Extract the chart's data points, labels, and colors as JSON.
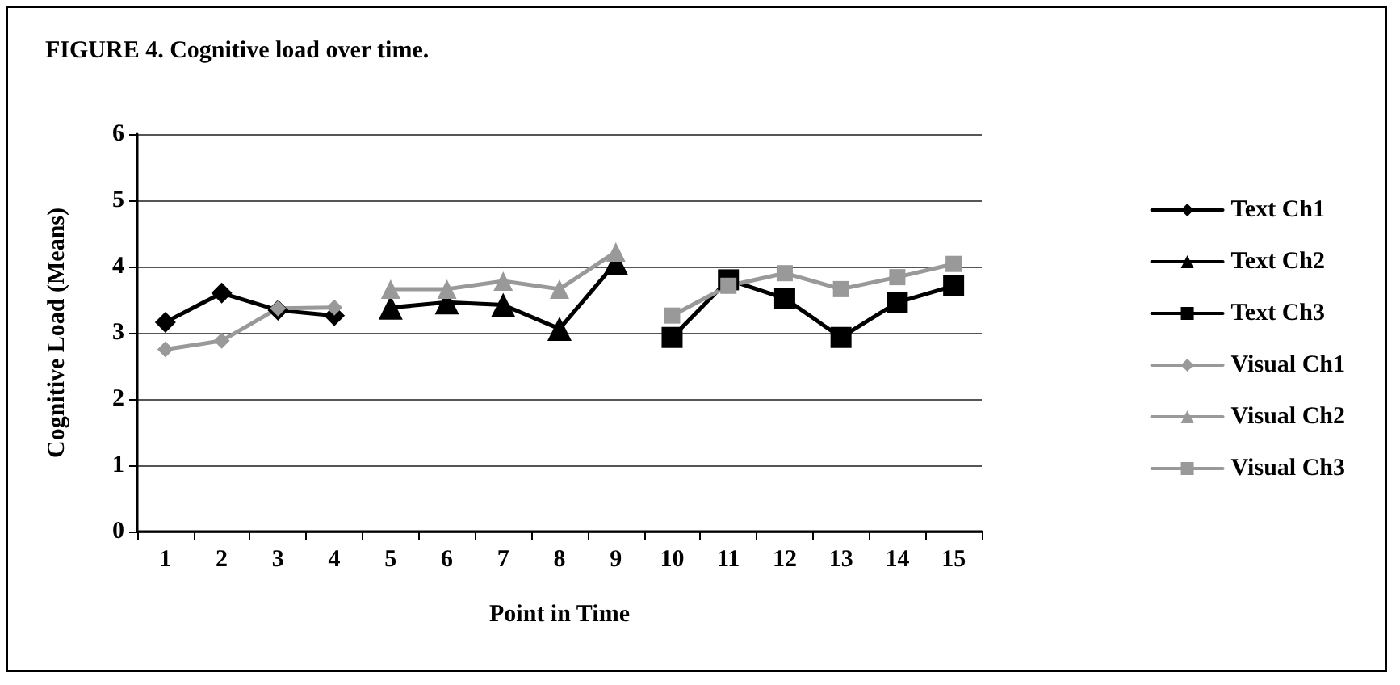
{
  "chart_data": {
    "type": "line",
    "title": "FIGURE 4. Cognitive load over time.",
    "xlabel": "Point in Time",
    "ylabel": "Cognitive Load (Means)",
    "categories": [
      "1",
      "2",
      "3",
      "4",
      "5",
      "6",
      "7",
      "8",
      "9",
      "10",
      "11",
      "12",
      "13",
      "14",
      "15"
    ],
    "series": [
      {
        "name": "Text Ch1",
        "color": "#000000",
        "marker": "diamond",
        "values": [
          3.16,
          3.6,
          3.34,
          3.26,
          null,
          null,
          null,
          null,
          null,
          null,
          null,
          null,
          null,
          null,
          null
        ]
      },
      {
        "name": "Text Ch2",
        "color": "#000000",
        "marker": "triangle",
        "values": [
          null,
          null,
          null,
          null,
          3.38,
          3.46,
          3.42,
          3.06,
          4.06,
          null,
          null,
          null,
          null,
          null,
          null
        ]
      },
      {
        "name": "Text Ch3",
        "color": "#000000",
        "marker": "square",
        "values": [
          null,
          null,
          null,
          null,
          null,
          null,
          null,
          null,
          null,
          2.93,
          3.8,
          3.52,
          2.93,
          3.46,
          3.71
        ]
      },
      {
        "name": "Visual Ch1",
        "color": "#999999",
        "marker": "diamond",
        "values": [
          2.75,
          2.88,
          3.37,
          3.38,
          null,
          null,
          null,
          null,
          null,
          null,
          null,
          null,
          null,
          null,
          null
        ]
      },
      {
        "name": "Visual Ch2",
        "color": "#999999",
        "marker": "triangle",
        "values": [
          null,
          null,
          null,
          null,
          3.66,
          3.66,
          3.78,
          3.66,
          4.22,
          null,
          null,
          null,
          null,
          null,
          null
        ]
      },
      {
        "name": "Visual Ch3",
        "color": "#999999",
        "marker": "square",
        "values": [
          null,
          null,
          null,
          null,
          null,
          null,
          null,
          null,
          null,
          3.26,
          3.71,
          3.9,
          3.66,
          3.84,
          4.04
        ]
      }
    ],
    "ylim": [
      0,
      6
    ],
    "yticks": [
      0,
      1,
      2,
      3,
      4,
      5,
      6
    ],
    "grid": "y",
    "legend": "right",
    "line_style": "solid"
  }
}
